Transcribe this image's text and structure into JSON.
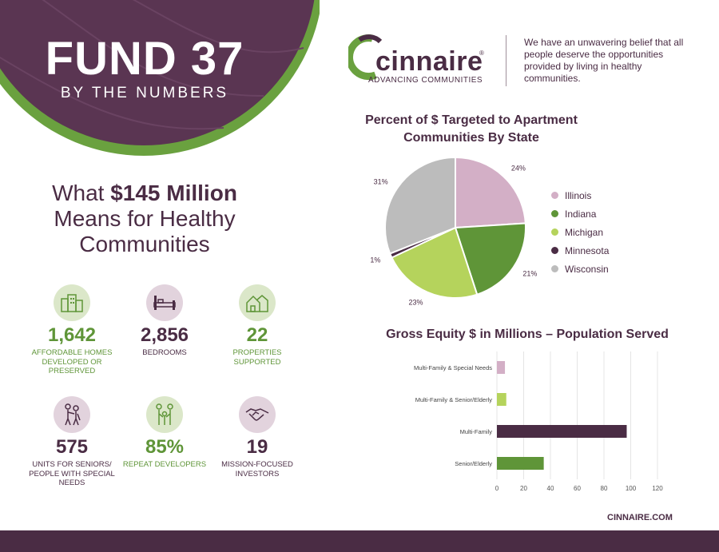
{
  "hero": {
    "title": "FUND 37",
    "subtitle": "BY THE NUMBERS"
  },
  "headline": {
    "pre": "What ",
    "amount": "$145 Million",
    "line2": "Means for Healthy",
    "line3": "Communities"
  },
  "stats": [
    {
      "num": "1,642",
      "label": "AFFORDABLE HOMES DEVELOPED OR PRESERVED",
      "icon": "buildings-icon",
      "tone": "green"
    },
    {
      "num": "2,856",
      "label": "BEDROOMS",
      "icon": "bed-icon",
      "tone": "purple"
    },
    {
      "num": "22",
      "label": "PROPERTIES SUPPORTED",
      "icon": "houses-icon",
      "tone": "green"
    },
    {
      "num": "575",
      "label": "UNITS FOR SENIORS/ PEOPLE WITH SPECIAL NEEDS",
      "icon": "people-assist-icon",
      "tone": "purple"
    },
    {
      "num": "85%",
      "label": "REPEAT DEVELOPERS",
      "icon": "family-icon",
      "tone": "green"
    },
    {
      "num": "19",
      "label": "MISSION-FOCUSED INVESTORS",
      "icon": "handshake-icon",
      "tone": "purple"
    }
  ],
  "logo": {
    "word": "cinnaire",
    "reg": "®",
    "tagline": "ADVANCING COMMUNITIES"
  },
  "belief": "We have an unwavering belief that all people deserve the opportunities provided by living in healthy communities.",
  "footer": {
    "url": "CINNAIRE.COM"
  },
  "colors": {
    "purple": "#4a2c44",
    "green": "#5f9538",
    "lightgreen": "#b5d35c",
    "pink": "#d3afc6",
    "gray": "#bcbcbc"
  },
  "chart_data": [
    {
      "type": "pie",
      "title": "Percent of $ Targeted to Apartment Communities By State",
      "legend_position": "right",
      "slices": [
        {
          "name": "Illinois",
          "value": 24,
          "label": "24%",
          "color": "#d3afc6"
        },
        {
          "name": "Indiana",
          "value": 21,
          "label": "21%",
          "color": "#5f9538"
        },
        {
          "name": "Michigan",
          "value": 23,
          "label": "23%",
          "color": "#b5d35c"
        },
        {
          "name": "Minnesota",
          "value": 1,
          "label": "1%",
          "color": "#4a2c44"
        },
        {
          "name": "Wisconsin",
          "value": 31,
          "label": "31%",
          "color": "#bcbcbc"
        }
      ]
    },
    {
      "type": "bar",
      "orientation": "horizontal",
      "title": "Gross Equity $ in Millions – Population Served",
      "categories": [
        "Multi-Family & Special Needs",
        "Multi-Family & Senior/Elderly",
        "Multi-Family",
        "Senior/Elderly"
      ],
      "values": [
        6,
        7,
        97,
        35
      ],
      "colors": [
        "#d3afc6",
        "#b5d35c",
        "#4a2c44",
        "#5f9538"
      ],
      "xlim": [
        0,
        120
      ],
      "xticks": [
        "0",
        "20",
        "40",
        "60",
        "80",
        "100",
        "120"
      ],
      "grid": true
    }
  ]
}
